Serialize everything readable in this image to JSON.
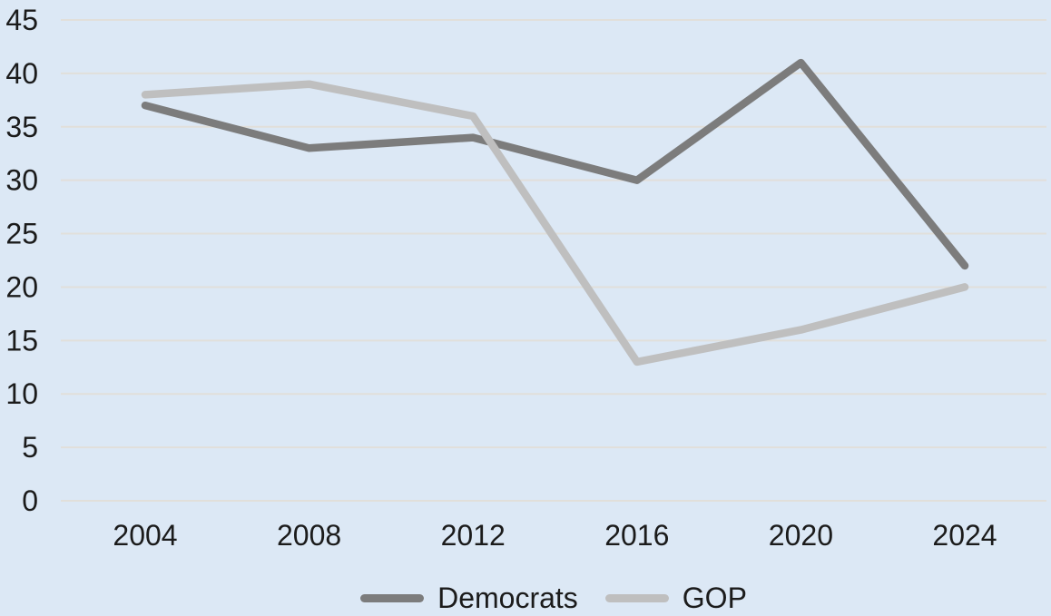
{
  "chart_data": {
    "type": "line",
    "categories": [
      "2004",
      "2008",
      "2012",
      "2016",
      "2020",
      "2024"
    ],
    "series": [
      {
        "name": "Democrats",
        "values": [
          37,
          33,
          34,
          30,
          41,
          22
        ],
        "color": "#7c7c7c"
      },
      {
        "name": "GOP",
        "values": [
          38,
          39,
          36,
          13,
          16,
          20
        ],
        "color": "#bfbfbf"
      }
    ],
    "title": "",
    "xlabel": "",
    "ylabel": "",
    "ylim": [
      0,
      45
    ],
    "ytick_step": 5,
    "yticks": [
      0,
      5,
      10,
      15,
      20,
      25,
      30,
      35,
      40,
      45
    ],
    "grid": true,
    "legend_position": "bottom",
    "colors": {
      "background": "#dce8f5",
      "gridline": "#e1dfda",
      "tick_text": "#1b1b1b"
    }
  }
}
